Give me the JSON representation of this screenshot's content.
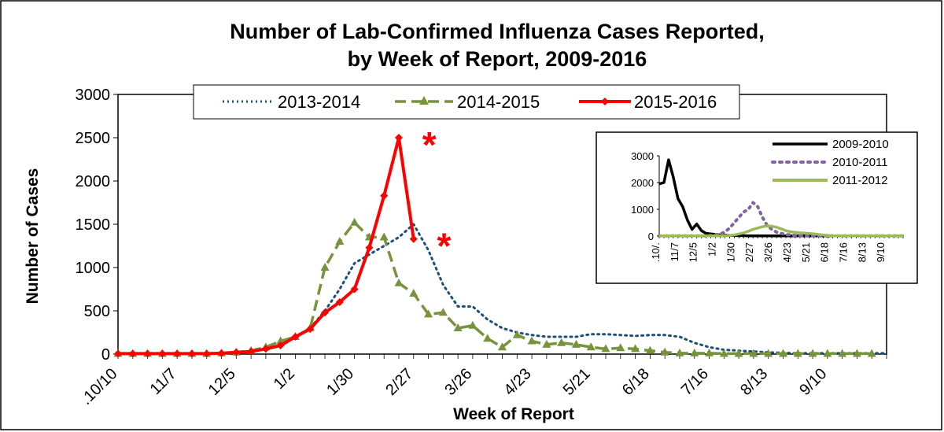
{
  "chart_data": [
    {
      "type": "line",
      "title_lines": [
        "Number of Lab-Confirmed Influenza Cases Reported,",
        "by Week of Report, 2009-2016"
      ],
      "xlabel": "Week of Report",
      "ylabel": "Number of Cases",
      "ylim": [
        0,
        3000
      ],
      "yticks": [
        0,
        500,
        1000,
        1500,
        2000,
        2500,
        3000
      ],
      "week_count": 52,
      "xtick_labels": [
        {
          "week": 0,
          "label": ".10/10"
        },
        {
          "week": 4,
          "label": "11/7"
        },
        {
          "week": 8,
          "label": "12/5"
        },
        {
          "week": 12,
          "label": "1/2"
        },
        {
          "week": 16,
          "label": "1/30"
        },
        {
          "week": 20,
          "label": "2/27"
        },
        {
          "week": 24,
          "label": "3/26"
        },
        {
          "week": 28,
          "label": "4/23"
        },
        {
          "week": 32,
          "label": "5/21"
        },
        {
          "week": 36,
          "label": "6/18"
        },
        {
          "week": 40,
          "label": "7/16"
        },
        {
          "week": 44,
          "label": "8/13"
        },
        {
          "week": 48,
          "label": "9/10"
        }
      ],
      "series": [
        {
          "name": "2013-2014",
          "color": "#1f4e79",
          "style": "dotted",
          "values": [
            10,
            10,
            10,
            10,
            10,
            10,
            10,
            10,
            20,
            30,
            60,
            100,
            200,
            300,
            500,
            750,
            1050,
            1150,
            1250,
            1350,
            1500,
            1200,
            800,
            550,
            550,
            400,
            300,
            250,
            220,
            200,
            200,
            200,
            230,
            230,
            220,
            210,
            220,
            220,
            200,
            130,
            80,
            50,
            40,
            30,
            20,
            15,
            10,
            10,
            10,
            10,
            10,
            10,
            10
          ]
        },
        {
          "name": "2014-2015",
          "color": "#77933c",
          "style": "dashed-triangle",
          "values": [
            5,
            5,
            5,
            5,
            5,
            5,
            5,
            10,
            20,
            40,
            80,
            150,
            200,
            300,
            1000,
            1300,
            1520,
            1350,
            1350,
            820,
            700,
            460,
            480,
            300,
            330,
            180,
            80,
            220,
            150,
            110,
            130,
            110,
            80,
            60,
            70,
            60,
            40,
            20,
            10,
            10,
            10,
            5,
            5,
            5,
            5,
            5,
            5,
            5,
            5,
            5,
            5,
            5
          ]
        },
        {
          "name": "2015-2016",
          "color": "#ff0000",
          "style": "solid-diamond",
          "values": [
            5,
            5,
            5,
            5,
            5,
            5,
            5,
            10,
            20,
            30,
            60,
            100,
            200,
            290,
            480,
            600,
            750,
            1230,
            1830,
            2500,
            1330
          ]
        }
      ],
      "annotations": [
        {
          "text": "*",
          "week": 20,
          "value": 2500
        },
        {
          "text": "*",
          "week": 21,
          "value": 1330
        }
      ]
    },
    {
      "type": "line",
      "role": "inset",
      "ylim": [
        0,
        3000
      ],
      "yticks": [
        0,
        1000,
        2000,
        3000
      ],
      "week_count": 52,
      "xtick_labels": [
        {
          "week": 0,
          "label": ".10/."
        },
        {
          "week": 4,
          "label": "11/7"
        },
        {
          "week": 8,
          "label": "12/5"
        },
        {
          "week": 12,
          "label": "1/2"
        },
        {
          "week": 16,
          "label": "1/30"
        },
        {
          "week": 20,
          "label": "2/27"
        },
        {
          "week": 24,
          "label": "3/26"
        },
        {
          "week": 28,
          "label": "4/23"
        },
        {
          "week": 32,
          "label": "5/21"
        },
        {
          "week": 36,
          "label": "6/18"
        },
        {
          "week": 40,
          "label": "7/16"
        },
        {
          "week": 44,
          "label": "8/13"
        },
        {
          "week": 48,
          "label": "9/10"
        }
      ],
      "series": [
        {
          "name": "2009-2010",
          "color": "#000000",
          "style": "solid",
          "values": [
            1950,
            2000,
            2850,
            2200,
            1400,
            1100,
            600,
            250,
            450,
            200,
            100,
            80,
            60,
            40,
            30,
            20,
            20,
            15,
            15,
            10,
            10,
            10,
            10,
            10,
            10,
            10,
            10,
            10,
            10,
            10,
            10,
            10,
            10,
            10,
            10,
            10,
            10,
            10,
            10,
            10,
            10,
            10,
            10,
            10,
            10,
            10,
            10,
            10,
            10,
            10,
            10,
            10,
            10
          ]
        },
        {
          "name": "2010-2011",
          "color": "#8064a2",
          "style": "dotted",
          "values": [
            10,
            10,
            10,
            10,
            10,
            10,
            10,
            10,
            10,
            10,
            10,
            20,
            40,
            80,
            150,
            300,
            500,
            700,
            900,
            1000,
            1250,
            1100,
            700,
            400,
            250,
            150,
            100,
            60,
            40,
            20,
            10,
            10,
            10,
            10,
            10,
            10,
            10,
            10,
            10,
            10,
            10,
            10,
            10,
            10,
            10,
            10,
            10,
            10,
            10,
            10,
            10,
            10,
            10
          ]
        },
        {
          "name": "2011-2012",
          "color": "#9bbb59",
          "style": "solid",
          "values": [
            5,
            5,
            5,
            5,
            5,
            5,
            5,
            5,
            5,
            5,
            5,
            5,
            5,
            5,
            10,
            20,
            40,
            80,
            120,
            180,
            250,
            300,
            350,
            380,
            370,
            330,
            270,
            200,
            160,
            140,
            120,
            110,
            100,
            80,
            60,
            40,
            20,
            10,
            5,
            5,
            5,
            5,
            5,
            5,
            5,
            5,
            5,
            5,
            5,
            5,
            5,
            5,
            5
          ]
        }
      ]
    }
  ]
}
